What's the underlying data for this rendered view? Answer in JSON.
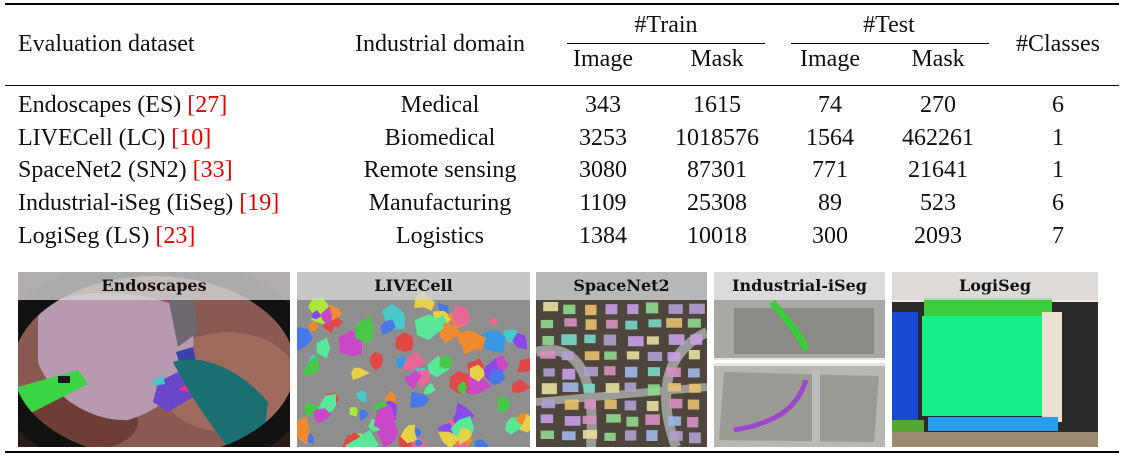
{
  "table": {
    "headers": {
      "dataset": "Evaluation dataset",
      "domain": "Industrial domain",
      "train": "#Train",
      "test": "#Test",
      "image": "Image",
      "mask": "Mask",
      "classes": "#Classes"
    },
    "rows": [
      {
        "name": "Endoscapes (ES) ",
        "ref": "[27]",
        "domain": "Medical",
        "train_image": "343",
        "train_mask": "1615",
        "test_image": "74",
        "test_mask": "270",
        "classes": "6"
      },
      {
        "name": "LIVECell (LC) ",
        "ref": "[10]",
        "domain": "Biomedical",
        "train_image": "3253",
        "train_mask": "1018576",
        "test_image": "1564",
        "test_mask": "462261",
        "classes": "1"
      },
      {
        "name": "SpaceNet2 (SN2) ",
        "ref": "[33]",
        "domain": "Remote sensing",
        "train_image": "3080",
        "train_mask": "87301",
        "test_image": "771",
        "test_mask": "21641",
        "classes": "1"
      },
      {
        "name": "Industrial-iSeg (IiSeg) ",
        "ref": "[19]",
        "domain": "Manufacturing",
        "train_image": "1109",
        "train_mask": "25308",
        "test_image": "89",
        "test_mask": "523",
        "classes": "6"
      },
      {
        "name": "LogiSeg (LS) ",
        "ref": "[23]",
        "domain": "Logistics",
        "train_image": "1384",
        "train_mask": "10018",
        "test_image": "300",
        "test_mask": "2093",
        "classes": "7"
      }
    ]
  },
  "panels": [
    {
      "title": "Endoscapes"
    },
    {
      "title": "LIVECell"
    },
    {
      "title": "SpaceNet2"
    },
    {
      "title": "Industrial-iSeg"
    },
    {
      "title": "LogiSeg"
    }
  ]
}
